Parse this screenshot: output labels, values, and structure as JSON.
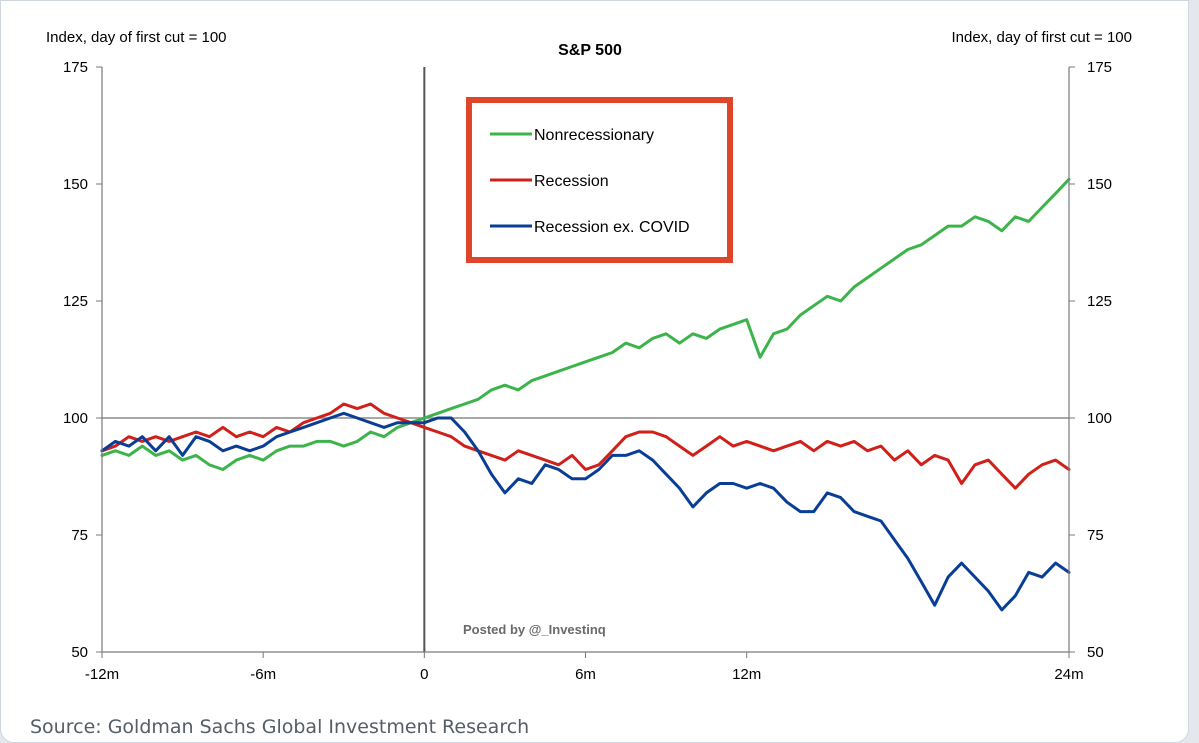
{
  "chart_data": {
    "type": "line",
    "title": "S&P 500",
    "ylabel_left": "Index, day of first cut = 100",
    "ylabel_right": "Index, day of first cut = 100",
    "x_range_months": [
      -12,
      24
    ],
    "ylim": [
      50,
      175
    ],
    "y_ticks": [
      50,
      75,
      100,
      125,
      150,
      175
    ],
    "x_ticks": [
      {
        "value": -12,
        "label": "-12m"
      },
      {
        "value": -6,
        "label": "-6m"
      },
      {
        "value": 0,
        "label": "0"
      },
      {
        "value": 6,
        "label": "6m"
      },
      {
        "value": 12,
        "label": "12m"
      },
      {
        "value": 24,
        "label": "24m"
      }
    ],
    "reference_line_y": 100,
    "reference_line_x": 0,
    "legend_position": "top-center",
    "series": [
      {
        "name": "Nonrecessionary",
        "color": "#3cb44b",
        "points": [
          [
            -12,
            92
          ],
          [
            -11.5,
            93
          ],
          [
            -11,
            92
          ],
          [
            -10.5,
            94
          ],
          [
            -10,
            92
          ],
          [
            -9.5,
            93
          ],
          [
            -9,
            91
          ],
          [
            -8.5,
            92
          ],
          [
            -8,
            90
          ],
          [
            -7.5,
            89
          ],
          [
            -7,
            91
          ],
          [
            -6.5,
            92
          ],
          [
            -6,
            91
          ],
          [
            -5.5,
            93
          ],
          [
            -5,
            94
          ],
          [
            -4.5,
            94
          ],
          [
            -4,
            95
          ],
          [
            -3.5,
            95
          ],
          [
            -3,
            94
          ],
          [
            -2.5,
            95
          ],
          [
            -2,
            97
          ],
          [
            -1.5,
            96
          ],
          [
            -1,
            98
          ],
          [
            -0.5,
            99
          ],
          [
            0,
            100
          ],
          [
            0.5,
            101
          ],
          [
            1,
            102
          ],
          [
            1.5,
            103
          ],
          [
            2,
            104
          ],
          [
            2.5,
            106
          ],
          [
            3,
            107
          ],
          [
            3.5,
            106
          ],
          [
            4,
            108
          ],
          [
            4.5,
            109
          ],
          [
            5,
            110
          ],
          [
            5.5,
            111
          ],
          [
            6,
            112
          ],
          [
            6.5,
            113
          ],
          [
            7,
            114
          ],
          [
            7.5,
            116
          ],
          [
            8,
            115
          ],
          [
            8.5,
            117
          ],
          [
            9,
            118
          ],
          [
            9.5,
            116
          ],
          [
            10,
            118
          ],
          [
            10.5,
            117
          ],
          [
            11,
            119
          ],
          [
            11.5,
            120
          ],
          [
            12,
            121
          ],
          [
            12.5,
            113
          ],
          [
            13,
            118
          ],
          [
            13.5,
            119
          ],
          [
            14,
            122
          ],
          [
            14.5,
            124
          ],
          [
            15,
            126
          ],
          [
            15.5,
            125
          ],
          [
            16,
            128
          ],
          [
            16.5,
            130
          ],
          [
            17,
            132
          ],
          [
            17.5,
            134
          ],
          [
            18,
            136
          ],
          [
            18.5,
            137
          ],
          [
            19,
            139
          ],
          [
            19.5,
            141
          ],
          [
            20,
            141
          ],
          [
            20.5,
            143
          ],
          [
            21,
            142
          ],
          [
            21.5,
            140
          ],
          [
            22,
            143
          ],
          [
            22.5,
            142
          ],
          [
            23,
            145
          ],
          [
            23.5,
            148
          ],
          [
            24,
            151
          ]
        ]
      },
      {
        "name": "Recession",
        "color": "#d0201a",
        "points": [
          [
            -12,
            93
          ],
          [
            -11.5,
            94
          ],
          [
            -11,
            96
          ],
          [
            -10.5,
            95
          ],
          [
            -10,
            96
          ],
          [
            -9.5,
            95
          ],
          [
            -9,
            96
          ],
          [
            -8.5,
            97
          ],
          [
            -8,
            96
          ],
          [
            -7.5,
            98
          ],
          [
            -7,
            96
          ],
          [
            -6.5,
            97
          ],
          [
            -6,
            96
          ],
          [
            -5.5,
            98
          ],
          [
            -5,
            97
          ],
          [
            -4.5,
            99
          ],
          [
            -4,
            100
          ],
          [
            -3.5,
            101
          ],
          [
            -3,
            103
          ],
          [
            -2.5,
            102
          ],
          [
            -2,
            103
          ],
          [
            -1.5,
            101
          ],
          [
            -1,
            100
          ],
          [
            -0.5,
            99
          ],
          [
            0,
            98
          ],
          [
            0.5,
            97
          ],
          [
            1,
            96
          ],
          [
            1.5,
            94
          ],
          [
            2,
            93
          ],
          [
            2.5,
            92
          ],
          [
            3,
            91
          ],
          [
            3.5,
            93
          ],
          [
            4,
            92
          ],
          [
            4.5,
            91
          ],
          [
            5,
            90
          ],
          [
            5.5,
            92
          ],
          [
            6,
            89
          ],
          [
            6.5,
            90
          ],
          [
            7,
            93
          ],
          [
            7.5,
            96
          ],
          [
            8,
            97
          ],
          [
            8.5,
            97
          ],
          [
            9,
            96
          ],
          [
            9.5,
            94
          ],
          [
            10,
            92
          ],
          [
            10.5,
            94
          ],
          [
            11,
            96
          ],
          [
            11.5,
            94
          ],
          [
            12,
            95
          ],
          [
            12.5,
            94
          ],
          [
            13,
            93
          ],
          [
            13.5,
            94
          ],
          [
            14,
            95
          ],
          [
            14.5,
            93
          ],
          [
            15,
            95
          ],
          [
            15.5,
            94
          ],
          [
            16,
            95
          ],
          [
            16.5,
            93
          ],
          [
            17,
            94
          ],
          [
            17.5,
            91
          ],
          [
            18,
            93
          ],
          [
            18.5,
            90
          ],
          [
            19,
            92
          ],
          [
            19.5,
            91
          ],
          [
            20,
            86
          ],
          [
            20.5,
            90
          ],
          [
            21,
            91
          ],
          [
            21.5,
            88
          ],
          [
            22,
            85
          ],
          [
            22.5,
            88
          ],
          [
            23,
            90
          ],
          [
            23.5,
            91
          ],
          [
            24,
            89
          ]
        ]
      },
      {
        "name": "Recession ex. COVID",
        "color": "#0a3e96",
        "points": [
          [
            -12,
            93
          ],
          [
            -11.5,
            95
          ],
          [
            -11,
            94
          ],
          [
            -10.5,
            96
          ],
          [
            -10,
            93
          ],
          [
            -9.5,
            96
          ],
          [
            -9,
            92
          ],
          [
            -8.5,
            96
          ],
          [
            -8,
            95
          ],
          [
            -7.5,
            93
          ],
          [
            -7,
            94
          ],
          [
            -6.5,
            93
          ],
          [
            -6,
            94
          ],
          [
            -5.5,
            96
          ],
          [
            -5,
            97
          ],
          [
            -4.5,
            98
          ],
          [
            -4,
            99
          ],
          [
            -3.5,
            100
          ],
          [
            -3,
            101
          ],
          [
            -2.5,
            100
          ],
          [
            -2,
            99
          ],
          [
            -1.5,
            98
          ],
          [
            -1,
            99
          ],
          [
            -0.5,
            99
          ],
          [
            0,
            99
          ],
          [
            0.5,
            100
          ],
          [
            1,
            100
          ],
          [
            1.5,
            97
          ],
          [
            2,
            93
          ],
          [
            2.5,
            88
          ],
          [
            3,
            84
          ],
          [
            3.5,
            87
          ],
          [
            4,
            86
          ],
          [
            4.5,
            90
          ],
          [
            5,
            89
          ],
          [
            5.5,
            87
          ],
          [
            6,
            87
          ],
          [
            6.5,
            89
          ],
          [
            7,
            92
          ],
          [
            7.5,
            92
          ],
          [
            8,
            93
          ],
          [
            8.5,
            91
          ],
          [
            9,
            88
          ],
          [
            9.5,
            85
          ],
          [
            10,
            81
          ],
          [
            10.5,
            84
          ],
          [
            11,
            86
          ],
          [
            11.5,
            86
          ],
          [
            12,
            85
          ],
          [
            12.5,
            86
          ],
          [
            13,
            85
          ],
          [
            13.5,
            82
          ],
          [
            14,
            80
          ],
          [
            14.5,
            80
          ],
          [
            15,
            84
          ],
          [
            15.5,
            83
          ],
          [
            16,
            80
          ],
          [
            16.5,
            79
          ],
          [
            17,
            78
          ],
          [
            17.5,
            74
          ],
          [
            18,
            70
          ],
          [
            18.5,
            65
          ],
          [
            19,
            60
          ],
          [
            19.5,
            66
          ],
          [
            20,
            69
          ],
          [
            20.5,
            66
          ],
          [
            21,
            63
          ],
          [
            21.5,
            59
          ],
          [
            22,
            62
          ],
          [
            22.5,
            67
          ],
          [
            23,
            66
          ],
          [
            23.5,
            69
          ],
          [
            24,
            67
          ]
        ]
      }
    ]
  },
  "annotations": {
    "watermark": "Posted by @_Investinq",
    "source": "Source: Goldman Sachs Global Investment Research"
  }
}
